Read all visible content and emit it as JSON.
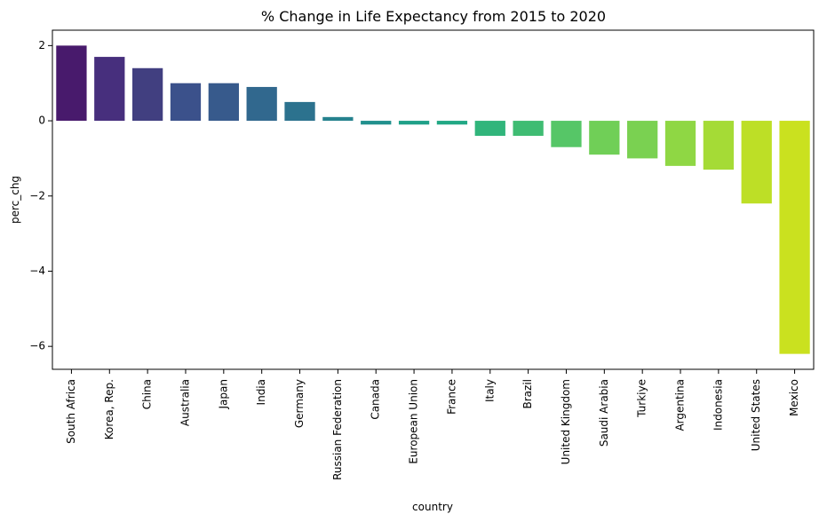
{
  "chart_data": {
    "type": "bar",
    "title": "% Change in Life Expectancy from 2015 to 2020",
    "xlabel": "country",
    "ylabel": "perc_chg",
    "categories": [
      "South Africa",
      "Korea, Rep.",
      "China",
      "Australia",
      "Japan",
      "India",
      "Germany",
      "Russian Federation",
      "Canada",
      "European Union",
      "France",
      "Italy",
      "Brazil",
      "United Kingdom",
      "Saudi Arabia",
      "Turkiye",
      "Argentina",
      "Indonesia",
      "United States",
      "Mexico"
    ],
    "values": [
      2.0,
      1.7,
      1.4,
      1.0,
      1.0,
      0.9,
      0.5,
      0.1,
      -0.1,
      -0.1,
      -0.1,
      -0.4,
      -0.4,
      -0.7,
      -0.9,
      -1.0,
      -1.2,
      -1.3,
      -2.2,
      -6.2
    ],
    "colors": [
      "#481a6c",
      "#472f7d",
      "#413f80",
      "#3b518b",
      "#375a8c",
      "#31688e",
      "#2c728e",
      "#26828e",
      "#21908d",
      "#1fa088",
      "#22a884",
      "#31b57b",
      "#3fbc73",
      "#56c667",
      "#70cf57",
      "#7ad151",
      "#8fd744",
      "#a5db36",
      "#bddf26",
      "#cae11f"
    ],
    "yticks": [
      2,
      0,
      -2,
      -4,
      -6
    ],
    "yticklabels": [
      "2",
      "0",
      "−2",
      "−4",
      "−6"
    ],
    "ylim": [
      -6.61,
      2.41
    ],
    "grid": false,
    "legend": "none"
  }
}
